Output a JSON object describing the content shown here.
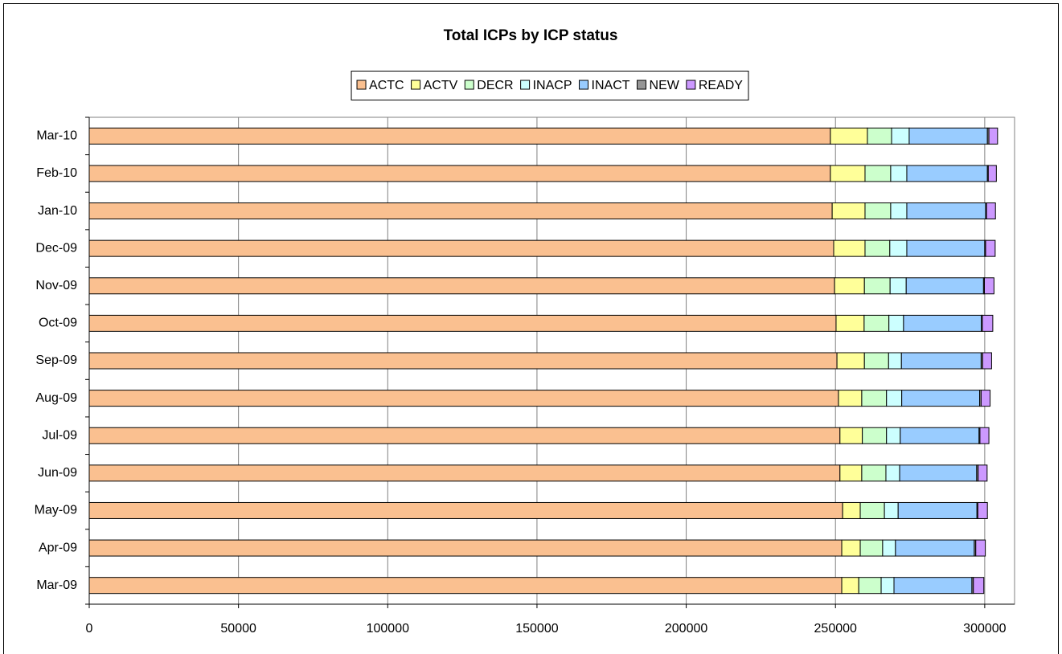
{
  "chart_data": {
    "type": "stacked-barh",
    "title": "Total ICPs by ICP status",
    "categories": [
      "Mar-09",
      "Apr-09",
      "May-09",
      "Jun-09",
      "Jul-09",
      "Aug-09",
      "Sep-09",
      "Oct-09",
      "Nov-09",
      "Dec-09",
      "Jan-10",
      "Feb-10",
      "Mar-10"
    ],
    "series": [
      {
        "name": "ACTC",
        "color": "#fac090",
        "values": [
          252100,
          252100,
          252400,
          251500,
          251500,
          251000,
          250500,
          250200,
          249700,
          249400,
          248900,
          248300,
          248300
        ]
      },
      {
        "name": "ACTV",
        "color": "#ffff99",
        "values": [
          5700,
          6200,
          5900,
          7300,
          7500,
          7800,
          9200,
          9400,
          10000,
          10500,
          11000,
          11600,
          12400
        ]
      },
      {
        "name": "DECR",
        "color": "#ccffcc",
        "values": [
          7500,
          7500,
          8100,
          8100,
          8100,
          8300,
          8100,
          8300,
          8600,
          8300,
          8600,
          8600,
          8100
        ]
      },
      {
        "name": "INACP",
        "color": "#ccffff",
        "values": [
          4300,
          4300,
          4600,
          4600,
          4600,
          5100,
          4300,
          4900,
          5400,
          5700,
          5400,
          5400,
          5900
        ]
      },
      {
        "name": "INACT",
        "color": "#99ccff",
        "values": [
          26100,
          26400,
          26400,
          25800,
          26400,
          26100,
          26700,
          26100,
          25900,
          26100,
          26400,
          27000,
          26200
        ]
      },
      {
        "name": "NEW",
        "color": "#969696",
        "values": [
          500,
          500,
          300,
          500,
          300,
          500,
          500,
          300,
          300,
          300,
          300,
          300,
          500
        ]
      },
      {
        "name": "READY",
        "color": "#cc99ff",
        "values": [
          3500,
          3200,
          3200,
          3000,
          3000,
          3000,
          3000,
          3500,
          3200,
          3200,
          3000,
          2700,
          2900
        ]
      }
    ],
    "xlim": [
      0,
      310000
    ],
    "xticks": [
      0,
      50000,
      100000,
      150000,
      200000,
      250000,
      300000
    ],
    "grid": true,
    "legend": "top"
  }
}
